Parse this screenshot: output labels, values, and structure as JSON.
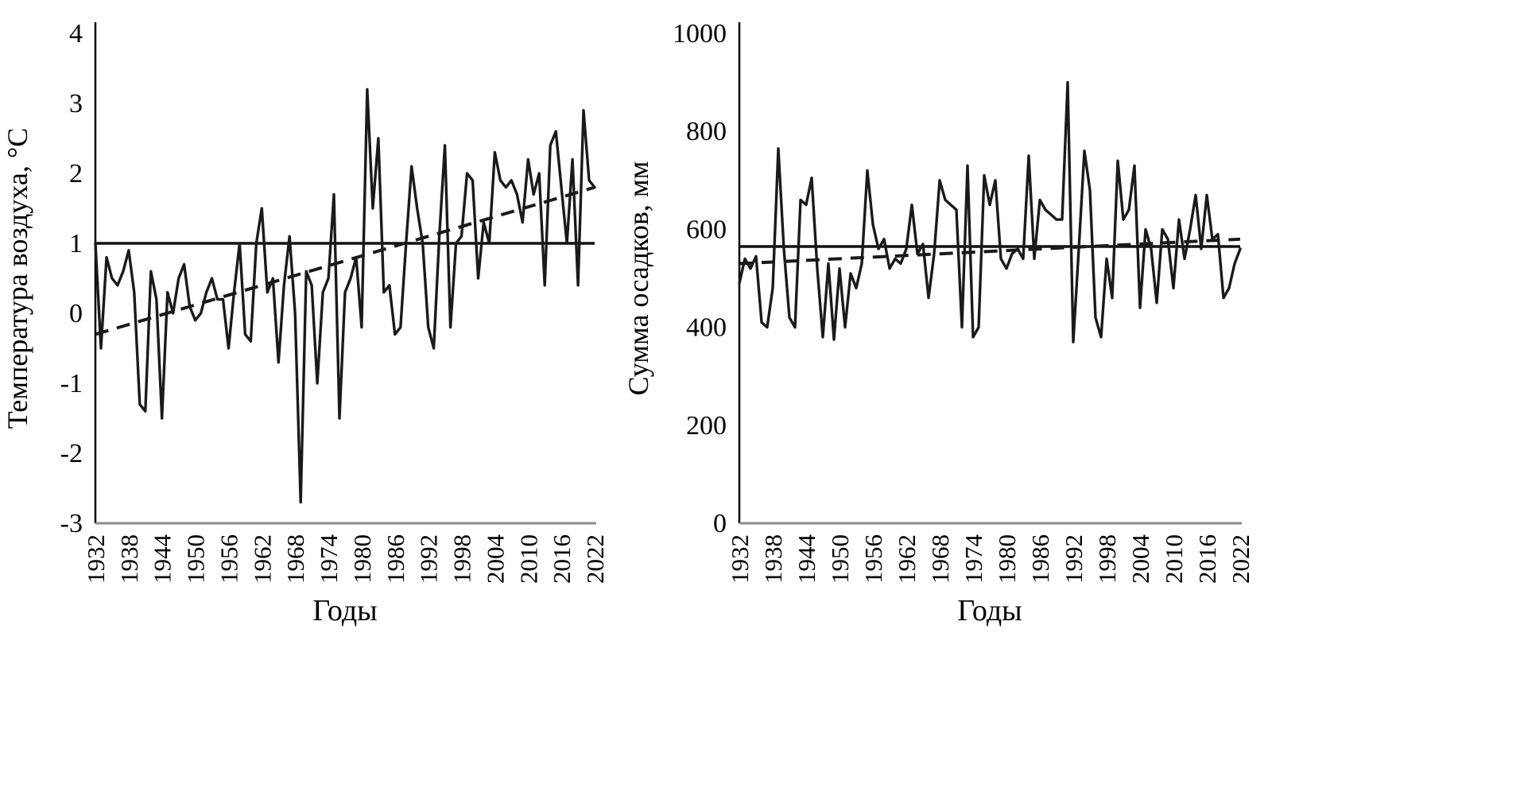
{
  "figure": {
    "description": "Two line charts: annual air temperature and annual precipitation sum, 1932-2022, with mean level (solid horizontal) and linear trend (dashed)."
  },
  "colors": {
    "series": "#1a1a1a",
    "mean_line": "#111111",
    "trend_line": "#1a1a1a",
    "y_axis": "#000000",
    "x_axis": "#8c8c8c",
    "text": "#000000"
  },
  "chart_data": [
    {
      "type": "line",
      "title": "",
      "ylabel": "Температура воздуха, °С",
      "xlabel": "Годы",
      "x_start": 1932,
      "x_end": 2022,
      "x_ticks": [
        1932,
        1938,
        1944,
        1950,
        1956,
        1962,
        1968,
        1974,
        1980,
        1986,
        1992,
        1998,
        2004,
        2010,
        2016,
        2022
      ],
      "ylim": [
        -3,
        4
      ],
      "y_ticks": [
        -3,
        -2,
        -1,
        0,
        1,
        2,
        3,
        4
      ],
      "grid": false,
      "legend": "none",
      "series": [
        {
          "name": "annual-temperature",
          "style": "annual",
          "values": [
            1.0,
            -0.5,
            0.8,
            0.5,
            0.4,
            0.6,
            0.9,
            0.3,
            -1.3,
            -1.4,
            0.6,
            0.2,
            -1.5,
            0.3,
            0.0,
            0.5,
            0.7,
            0.1,
            -0.1,
            0.0,
            0.3,
            0.5,
            0.2,
            0.2,
            -0.5,
            0.3,
            1.0,
            -0.3,
            -0.4,
            1.0,
            1.5,
            0.3,
            0.5,
            -0.7,
            0.4,
            1.1,
            0.0,
            -2.7,
            0.6,
            0.4,
            -1.0,
            0.3,
            0.5,
            1.7,
            -1.5,
            0.3,
            0.5,
            0.8,
            -0.2,
            3.2,
            1.5,
            2.5,
            0.3,
            0.4,
            -0.3,
            -0.2,
            1.0,
            2.1,
            1.5,
            1.0,
            -0.2,
            -0.5,
            1.1,
            2.4,
            -0.2,
            1.0,
            1.1,
            2.0,
            1.9,
            0.5,
            1.3,
            1.0,
            2.3,
            1.9,
            1.8,
            1.9,
            1.7,
            1.3,
            2.2,
            1.7,
            2.0,
            0.4,
            2.4,
            2.6,
            1.8,
            1.0,
            2.2,
            0.4,
            2.9,
            1.9,
            1.8
          ]
        },
        {
          "name": "mean-level",
          "style": "mean",
          "value": 1.0
        },
        {
          "name": "linear-trend",
          "style": "trend",
          "start": -0.3,
          "end": 1.8
        }
      ]
    },
    {
      "type": "line",
      "title": "",
      "ylabel": "Сумма осадков, мм",
      "xlabel": "Годы",
      "x_start": 1932,
      "x_end": 2022,
      "x_ticks": [
        1932,
        1938,
        1944,
        1950,
        1956,
        1962,
        1968,
        1974,
        1980,
        1986,
        1992,
        1998,
        2004,
        2010,
        2016,
        2022
      ],
      "ylim": [
        0,
        1000
      ],
      "y_ticks": [
        0,
        200,
        400,
        600,
        800,
        1000
      ],
      "grid": false,
      "legend": "none",
      "series": [
        {
          "name": "annual-precipitation",
          "style": "annual",
          "values": [
            490,
            540,
            520,
            545,
            410,
            400,
            480,
            765,
            560,
            420,
            400,
            660,
            650,
            705,
            520,
            380,
            530,
            375,
            520,
            400,
            510,
            480,
            530,
            720,
            610,
            560,
            580,
            520,
            540,
            530,
            560,
            650,
            550,
            570,
            460,
            550,
            700,
            660,
            650,
            640,
            400,
            730,
            380,
            400,
            710,
            650,
            700,
            540,
            520,
            550,
            560,
            540,
            750,
            540,
            660,
            640,
            630,
            620,
            620,
            900,
            370,
            560,
            760,
            680,
            420,
            380,
            540,
            460,
            740,
            620,
            640,
            730,
            440,
            600,
            560,
            450,
            600,
            580,
            480,
            620,
            540,
            600,
            670,
            560,
            670,
            580,
            590,
            460,
            480,
            530,
            560
          ]
        },
        {
          "name": "mean-level",
          "style": "mean",
          "value": 565
        },
        {
          "name": "linear-trend",
          "style": "trend",
          "start": 530,
          "end": 580
        }
      ]
    }
  ]
}
